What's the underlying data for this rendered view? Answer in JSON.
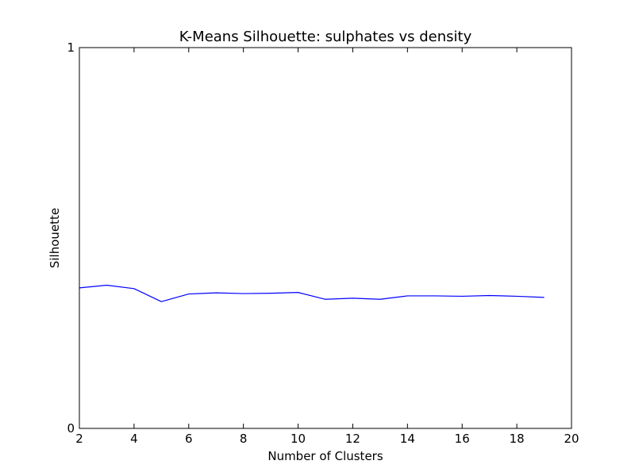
{
  "chart_data": {
    "type": "line",
    "title": "K-Means Silhouette: sulphates vs density",
    "xlabel": "Number of Clusters",
    "ylabel": "Silhouette",
    "xlim": [
      2,
      20
    ],
    "ylim": [
      0,
      1
    ],
    "xticks": [
      "2",
      "4",
      "6",
      "8",
      "10",
      "12",
      "14",
      "16",
      "18",
      "20"
    ],
    "yticks": [
      "0",
      "1"
    ],
    "grid": false,
    "legend": "none",
    "line_color": "#0000ff",
    "series": [
      {
        "x": [
          2,
          3,
          4,
          5,
          6,
          7,
          8,
          9,
          10,
          11,
          12,
          13,
          14,
          15,
          16,
          17,
          18,
          19
        ],
        "values": [
          0.369,
          0.376,
          0.367,
          0.333,
          0.353,
          0.356,
          0.354,
          0.355,
          0.357,
          0.339,
          0.342,
          0.339,
          0.348,
          0.348,
          0.347,
          0.349,
          0.347,
          0.344
        ]
      }
    ]
  }
}
